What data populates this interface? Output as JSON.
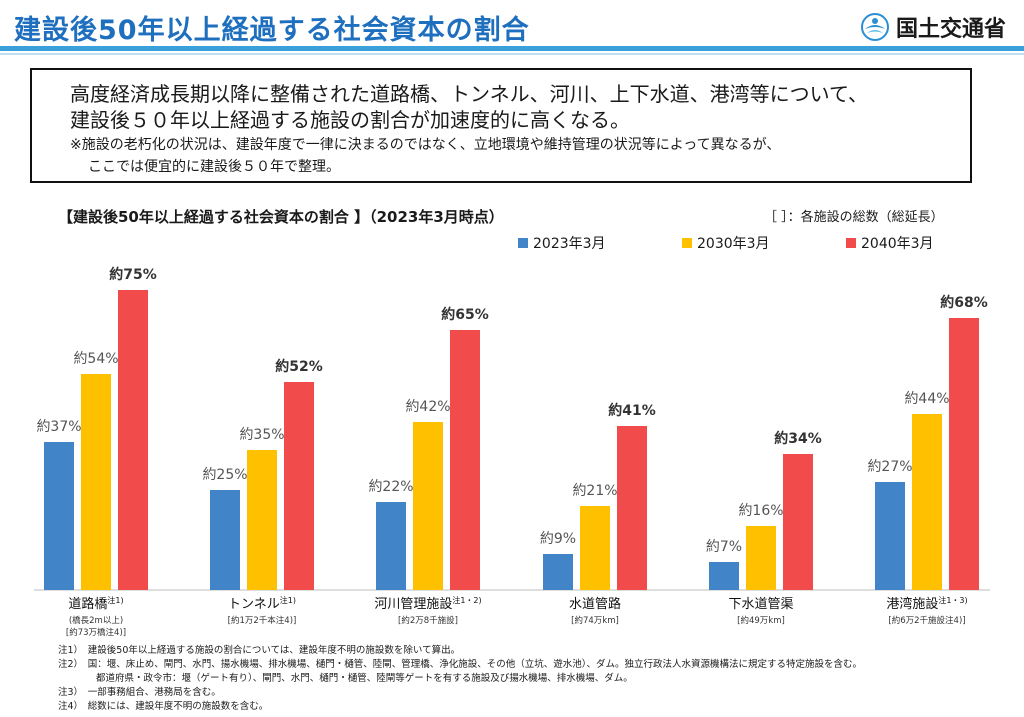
{
  "header": {
    "title": "建設後50年以上経過する社会資本の割合",
    "logo_text": "国土交通省"
  },
  "summary": {
    "line1": "高度経済成長期以降に整備された道路橋、トンネル、河川、上下水道、港湾等について、",
    "line2": "建設後５０年以上経過する施設の割合が加速度的に高くなる。",
    "note1": "※施設の老朽化の状況は、建設年度で一律に決まるのではなく、立地環境や維持管理の状況等によって異なるが、",
    "note2": "ここでは便宜的に建設後５０年で整理。"
  },
  "chart_heading": {
    "title": "【建設後50年以上経過する社会資本の割合 】（2023年3月時点）",
    "total_note": "［ ］：各施設の総数（総延長）"
  },
  "chart_data": {
    "type": "bar",
    "title": "【建設後50年以上経過する社会資本の割合 】（2023年3月時点）",
    "ylim": [
      0,
      100
    ],
    "grid": false,
    "legend_position": "top-right",
    "categories": [
      {
        "name": "道路橋",
        "sup": "注1)",
        "sub": [
          "(橋長2m以上)",
          "[約73万橋注4)]"
        ]
      },
      {
        "name": "トンネル",
        "sup": "注1)",
        "sub": [
          "[約1万2千本注4)]"
        ]
      },
      {
        "name": "河川管理施設",
        "sup": "注1・2)",
        "sub": [
          "[約2万8千施設]"
        ]
      },
      {
        "name": "水道管路",
        "sup": "",
        "sub": [
          "[約74万km]"
        ]
      },
      {
        "name": "下水道管渠",
        "sup": "",
        "sub": [
          "[約49万km]"
        ]
      },
      {
        "name": "港湾施設",
        "sup": "注1・3)",
        "sub": [
          "[約6万2千施設注4)]"
        ]
      }
    ],
    "series": [
      {
        "name": "2023年3月",
        "color": "#4184c8",
        "values": [
          37,
          25,
          22,
          9,
          7,
          27
        ],
        "labels": [
          "約37%",
          "約25%",
          "約22%",
          "約9%",
          "約7%",
          "約27%"
        ]
      },
      {
        "name": "2030年3月",
        "color": "#ffc000",
        "values": [
          54,
          35,
          42,
          21,
          16,
          44
        ],
        "labels": [
          "約54%",
          "約35%",
          "約42%",
          "約21%",
          "約16%",
          "約44%"
        ]
      },
      {
        "name": "2040年3月",
        "color": "#f24b4b",
        "values": [
          75,
          52,
          65,
          41,
          34,
          68
        ],
        "labels": [
          "約75%",
          "約52%",
          "約65%",
          "約41%",
          "約34%",
          "約68%"
        ]
      }
    ]
  },
  "footnotes": [
    "注1）　建設後50年以上経過する施設の割合については、建設年度不明の施設数を除いて算出。",
    "注2）　国：堰、床止め、閘門、水門、揚水機場、排水機場、樋門・樋管、陸閘、管理橋、浄化施設、その他（立坑、遊水池）、ダム。独立行政法人水資源機構法に規定する特定施設を含む。",
    "　　　　都道府県・政令市：堰（ゲート有り）、閘門、水門、樋門・樋管、陸閘等ゲートを有する施設及び揚水機場、排水機場、ダム。",
    "注3）　一部事務組合、港務局を含む。",
    "注4）　総数には、建設年度不明の施設数を含む。"
  ]
}
